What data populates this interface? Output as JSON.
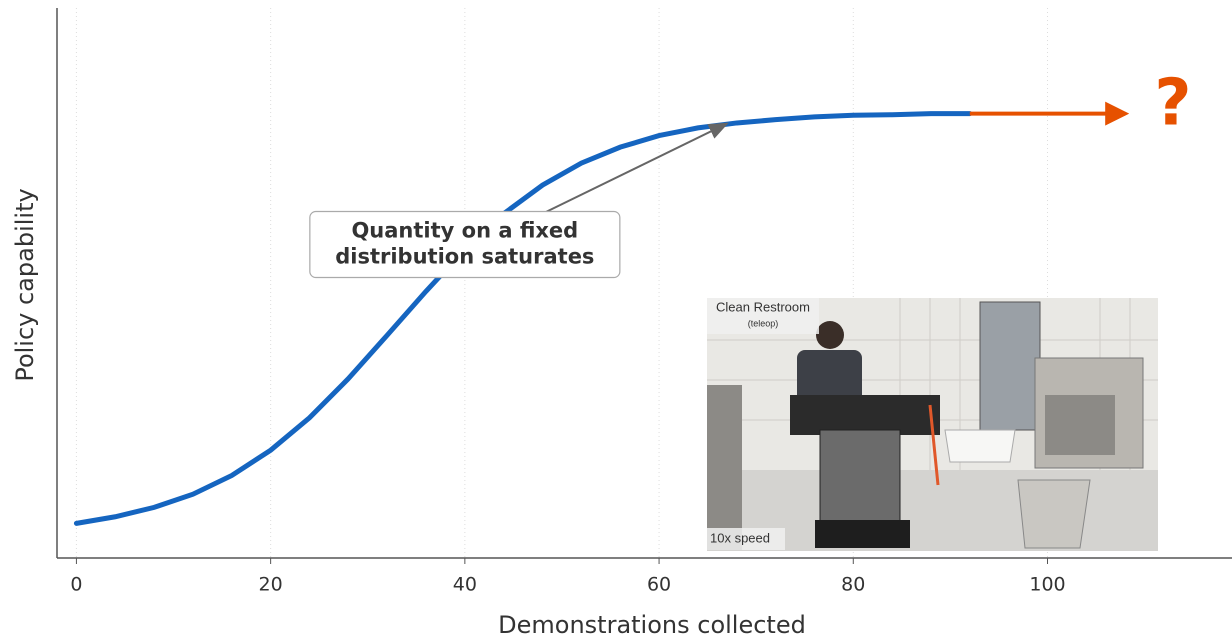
{
  "chart_data": {
    "type": "line",
    "x_label": "Demonstrations collected",
    "y_label": "Policy capability",
    "xlim": [
      -2,
      119
    ],
    "ylim": [
      0,
      1
    ],
    "xticks": [
      0,
      20,
      40,
      60,
      80,
      100
    ],
    "grid": true,
    "series": [
      {
        "color": "#1565c0",
        "x": [
          0,
          4,
          8,
          12,
          16,
          20,
          24,
          28,
          32,
          36,
          40,
          44,
          48,
          52,
          56,
          60,
          64,
          68,
          72,
          76,
          80,
          84,
          88,
          92
        ],
        "values": [
          0.063,
          0.075,
          0.092,
          0.116,
          0.15,
          0.196,
          0.255,
          0.326,
          0.405,
          0.485,
          0.561,
          0.626,
          0.678,
          0.718,
          0.747,
          0.768,
          0.782,
          0.791,
          0.797,
          0.802,
          0.805,
          0.806,
          0.808,
          0.808
        ]
      }
    ],
    "extension_arrow": {
      "color": "#e65100",
      "x": [
        92,
        108
      ],
      "y": 0.808
    },
    "question": {
      "text": "?",
      "x": 111,
      "y": 0.82,
      "color": "#e65100"
    },
    "annotation": {
      "lines": [
        "Quantity on a fixed",
        "distribution saturates"
      ],
      "xy": [
        67,
        0.79
      ],
      "xytext": [
        40,
        0.57
      ]
    },
    "inset": {
      "title": "Clean Restroom",
      "subtitle": "(teleop)",
      "caption": "10x speed"
    }
  }
}
